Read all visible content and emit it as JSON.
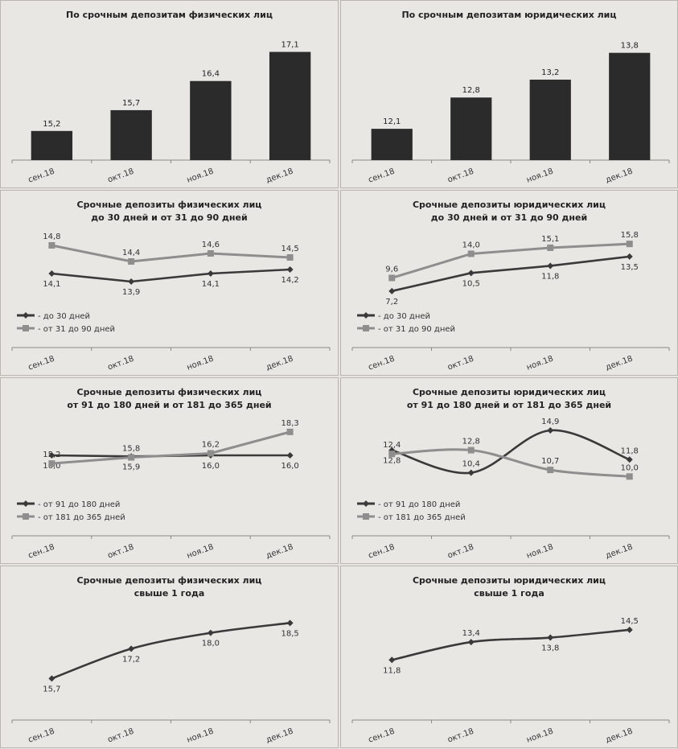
{
  "chart_data": [
    {
      "type": "bar",
      "title": [
        "По срочным депозитам физических лиц"
      ],
      "categories": [
        "сен.18",
        "окт.18",
        "ноя.18",
        "дек.18"
      ],
      "values": [
        15.2,
        15.7,
        16.4,
        17.1
      ],
      "labels": [
        "15,2",
        "15,7",
        "16,4",
        "17,1"
      ],
      "ylim": [
        14.5,
        17.4
      ]
    },
    {
      "type": "bar",
      "title": [
        "По срочным депозитам юридических лиц"
      ],
      "categories": [
        "сен.18",
        "окт.18",
        "ноя.18",
        "дек.18"
      ],
      "values": [
        12.1,
        12.8,
        13.2,
        13.8
      ],
      "labels": [
        "12,1",
        "12,8",
        "13,2",
        "13,8"
      ],
      "ylim": [
        11.4,
        14.1
      ]
    },
    {
      "type": "line",
      "title": [
        "Срочные депозиты физических лиц",
        "до 30 дней и от 31 до 90 дней"
      ],
      "categories": [
        "сен.18",
        "окт.18",
        "ноя.18",
        "дек.18"
      ],
      "ylim": [
        13.5,
        15.0
      ],
      "legend_position": "bottom-left",
      "series": [
        {
          "name": "- до 30 дней",
          "values": [
            14.1,
            13.9,
            14.1,
            14.2
          ],
          "labels": [
            "14,1",
            "13,9",
            "14,1",
            "14,2"
          ],
          "color": "#3a3a3a",
          "label_pos": "below",
          "marker": "diamond"
        },
        {
          "name": "- от 31 до 90 дней",
          "values": [
            14.8,
            14.4,
            14.6,
            14.5
          ],
          "labels": [
            "14,8",
            "14,4",
            "14,6",
            "14,5"
          ],
          "color": "#8e8e8e",
          "label_pos": "above",
          "marker": "square"
        }
      ]
    },
    {
      "type": "line",
      "title": [
        "Срочные депозиты юридических лиц",
        "до 30 дней и от 31 до 90 дней"
      ],
      "categories": [
        "сен.18",
        "окт.18",
        "ноя.18",
        "дек.18"
      ],
      "ylim": [
        6.0,
        17.0
      ],
      "legend_position": "bottom-left",
      "series": [
        {
          "name": "- до 30 дней",
          "values": [
            7.2,
            10.5,
            11.8,
            13.5
          ],
          "labels": [
            "7,2",
            "10,5",
            "11,8",
            "13,5"
          ],
          "color": "#3a3a3a",
          "label_pos": "below",
          "marker": "diamond"
        },
        {
          "name": "- от 31 до 90 дней",
          "values": [
            9.6,
            14.0,
            15.1,
            15.8
          ],
          "labels": [
            "9,6",
            "14,0",
            "15,1",
            "15,8"
          ],
          "color": "#8e8e8e",
          "label_pos": "above",
          "marker": "square"
        }
      ]
    },
    {
      "type": "line",
      "title": [
        "Срочные депозиты физических лиц",
        "от 91 до 180 дней и от 181 до 365 дней"
      ],
      "categories": [
        "сен.18",
        "окт.18",
        "ноя.18",
        "дек.18"
      ],
      "ylim": [
        13.0,
        19.0
      ],
      "legend_position": "bottom-left",
      "series": [
        {
          "name": "- от 91 до 180 дней",
          "values": [
            16.0,
            15.9,
            16.0,
            16.0
          ],
          "labels": [
            "16,0",
            "15,9",
            "16,0",
            "16,0"
          ],
          "color": "#3a3a3a",
          "label_pos": "below",
          "marker": "diamond"
        },
        {
          "name": "- от 181 до 365 дней",
          "values": [
            15.2,
            15.8,
            16.2,
            18.3
          ],
          "labels": [
            "15,2",
            "15,8",
            "16,2",
            "18,3"
          ],
          "color": "#8e8e8e",
          "label_pos": "above",
          "marker": "square"
        }
      ]
    },
    {
      "type": "line",
      "title": [
        "Срочные депозиты юридических лиц",
        "от 91 до 180 дней и от 181 до 365 дней"
      ],
      "categories": [
        "сен.18",
        "окт.18",
        "ноя.18",
        "дек.18"
      ],
      "ylim": [
        9.0,
        15.5
      ],
      "legend_position": "bottom-left",
      "smooth": true,
      "series": [
        {
          "name": "- от 91 до 180 дней",
          "values": [
            12.8,
            10.4,
            14.9,
            11.8
          ],
          "labels": [
            "12,8",
            "10,4",
            "14,9",
            "11,8"
          ],
          "color": "#3a3a3a",
          "label_pos": [
            "below",
            "above",
            "above",
            "above"
          ],
          "marker": "diamond"
        },
        {
          "name": "- от 181 до 365 дней",
          "values": [
            12.4,
            12.8,
            10.7,
            10.0
          ],
          "labels": [
            "12,4",
            "12,8",
            "10,7",
            "10,0"
          ],
          "color": "#8e8e8e",
          "label_pos": [
            "above",
            "above",
            "above",
            "above"
          ],
          "marker": "square"
        }
      ]
    },
    {
      "type": "line",
      "title": [
        "Срочные депозиты физических лиц",
        "свыше 1 года"
      ],
      "categories": [
        "сен.18",
        "окт.18",
        "ноя.18",
        "дек.18"
      ],
      "ylim": [
        14.5,
        19.0
      ],
      "smooth": true,
      "series": [
        {
          "values": [
            15.7,
            17.2,
            18.0,
            18.5
          ],
          "labels": [
            "15,7",
            "17,2",
            "18,0",
            "18,5"
          ],
          "color": "#3a3a3a",
          "label_pos": "below",
          "marker": "diamond"
        }
      ]
    },
    {
      "type": "line",
      "title": [
        "Срочные депозиты юридических лиц",
        "свыше 1 года"
      ],
      "categories": [
        "сен.18",
        "окт.18",
        "ноя.18",
        "дек.18"
      ],
      "ylim": [
        8.0,
        16.0
      ],
      "smooth": true,
      "series": [
        {
          "values": [
            11.8,
            13.4,
            13.8,
            14.5
          ],
          "labels": [
            "11,8",
            "13,4",
            "13,8",
            "14,5"
          ],
          "color": "#3a3a3a",
          "label_pos": [
            "below",
            "above",
            "below",
            "above"
          ],
          "marker": "diamond"
        }
      ]
    }
  ]
}
